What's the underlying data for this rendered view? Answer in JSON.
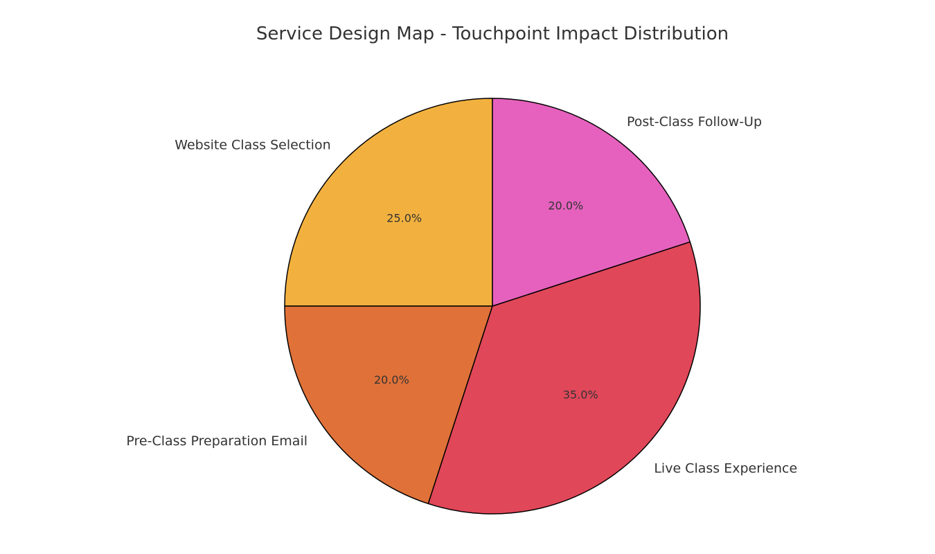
{
  "chart_data": {
    "type": "pie",
    "title": "Service Design Map - Touchpoint Impact Distribution",
    "start_angle_deg": 90,
    "direction": "counterclockwise",
    "slices": [
      {
        "label": "Website Class Selection",
        "value": 25.0,
        "pct_label": "25.0%",
        "color": "#F2B13F"
      },
      {
        "label": "Pre-Class Preparation Email",
        "value": 20.0,
        "pct_label": "20.0%",
        "color": "#E07138"
      },
      {
        "label": "Live Class Experience",
        "value": 35.0,
        "pct_label": "35.0%",
        "color": "#E04759"
      },
      {
        "label": "Post-Class Follow-Up",
        "value": 20.0,
        "pct_label": "20.0%",
        "color": "#E561BD"
      }
    ]
  }
}
